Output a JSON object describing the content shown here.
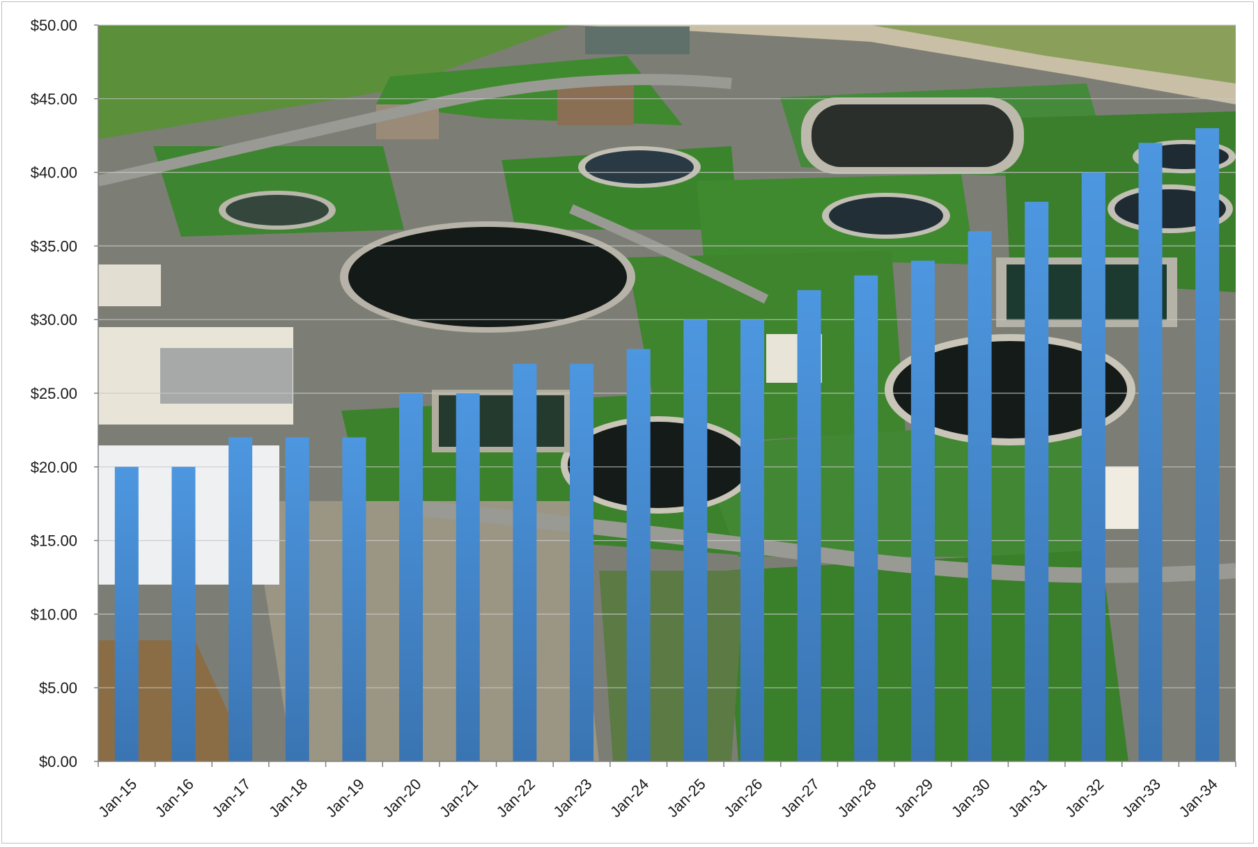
{
  "chart_data": {
    "type": "bar",
    "title": "",
    "xlabel": "",
    "ylabel": "",
    "categories": [
      "Jan-15",
      "Jan-16",
      "Jan-17",
      "Jan-18",
      "Jan-19",
      "Jan-20",
      "Jan-21",
      "Jan-22",
      "Jan-23",
      "Jan-24",
      "Jan-25",
      "Jan-26",
      "Jan-27",
      "Jan-28",
      "Jan-29",
      "Jan-30",
      "Jan-31",
      "Jan-32",
      "Jan-33",
      "Jan-34"
    ],
    "values": [
      20,
      20,
      22,
      22,
      22,
      25,
      25,
      27,
      27,
      28,
      30,
      30,
      32,
      33,
      34,
      36,
      38,
      40,
      42,
      43
    ],
    "ylim": [
      0,
      50
    ],
    "y_ticks": [
      0,
      5,
      10,
      15,
      20,
      25,
      30,
      35,
      40,
      45,
      50
    ],
    "y_tick_labels": [
      "$0.00",
      "$5.00",
      "$10.00",
      "$15.00",
      "$20.00",
      "$25.00",
      "$30.00",
      "$35.00",
      "$40.00",
      "$45.00",
      "$50.00"
    ],
    "grid": true,
    "legend": "none",
    "bar_color": "#4a90d9",
    "background": "aerial photograph of a wastewater treatment plant"
  },
  "colors": {
    "bar_top": "#4d97e0",
    "bar_bottom": "#3c78b8",
    "grid": "#c8c8c8",
    "axis": "#808080",
    "grass": "#3f7d2c",
    "pavement": "#8a8a84",
    "tank": "#141a17"
  }
}
